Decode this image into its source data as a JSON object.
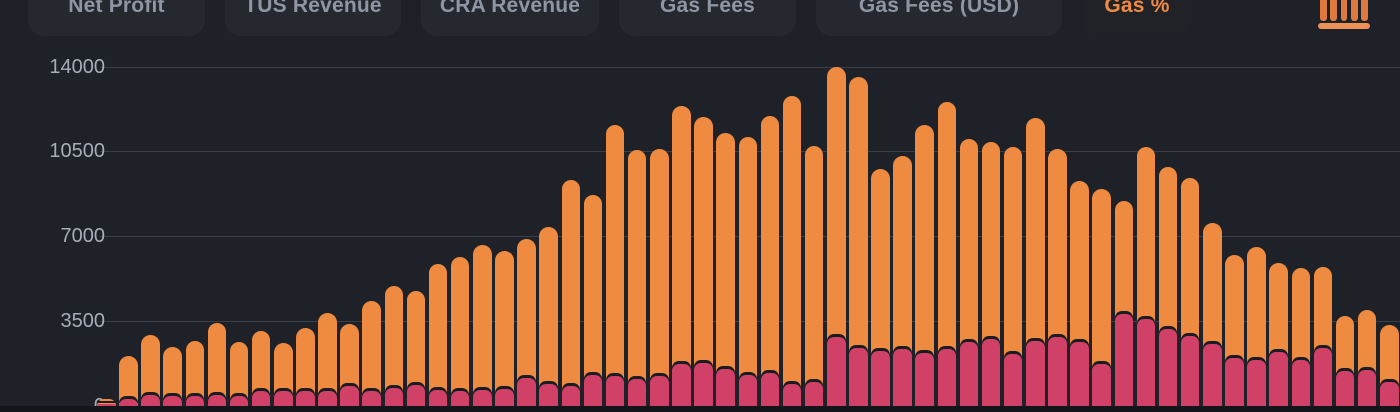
{
  "tabs": [
    {
      "label": "Net Profit",
      "active": false,
      "min_width": 177
    },
    {
      "label": "TUS Revenue",
      "active": false,
      "min_width": 176
    },
    {
      "label": "CRA Revenue",
      "active": false,
      "min_width": 178
    },
    {
      "label": "Gas Fees",
      "active": false,
      "min_width": 177
    },
    {
      "label": "Gas Fees (USD)",
      "active": false,
      "min_width": 246
    },
    {
      "label": "Gas %",
      "active": true,
      "min_width": 110
    }
  ],
  "toolbar": {
    "chart_type_icon": "bar-chart-icon"
  },
  "colors": {
    "background": "#1e2127",
    "tab_bg": "#26282f",
    "tab_text": "#8f96a3",
    "active_tab_text": "#ef8a44",
    "orange_bar": "#ee8b40",
    "magenta_bar": "#d04067",
    "gridline": "#3a3e47",
    "tick_text": "#a7adb9"
  },
  "chart_data": {
    "type": "bar",
    "title": "",
    "xlabel": "",
    "ylabel": "",
    "x_tick_labels_visible": false,
    "grid": true,
    "legend": "none",
    "ylim": [
      0,
      14000
    ],
    "y_ticks": [
      0,
      3500,
      7000,
      10500,
      14000
    ],
    "series": [
      {
        "name": "orange",
        "color": "#ee8b40",
        "values": [
          300,
          2050,
          2950,
          2420,
          2670,
          3420,
          2630,
          3080,
          2590,
          3210,
          3830,
          3370,
          4330,
          4950,
          4740,
          5860,
          6150,
          6640,
          6400,
          6900,
          7390,
          9340,
          8710,
          11610,
          10540,
          10580,
          12360,
          11900,
          11240,
          11080,
          11950,
          12770,
          10740,
          13970,
          13560,
          9790,
          10330,
          11570,
          12520,
          11030,
          10870,
          10700,
          11860,
          10620,
          9290,
          8950,
          8460,
          10700,
          9870,
          9420,
          7560,
          6230,
          6560,
          5900,
          5690,
          5730,
          3700,
          3950,
          3330
        ]
      },
      {
        "name": "magenta",
        "color": "#d04067",
        "values": [
          80,
          310,
          475,
          395,
          435,
          475,
          435,
          640,
          600,
          640,
          600,
          810,
          640,
          725,
          850,
          680,
          600,
          680,
          720,
          1140,
          890,
          810,
          1300,
          1220,
          1100,
          1220,
          1720,
          1760,
          1510,
          1300,
          1345,
          890,
          1010,
          2840,
          2380,
          2260,
          2340,
          2170,
          2340,
          2630,
          2760,
          2130,
          2670,
          2840,
          2630,
          1720,
          3800,
          3600,
          3170,
          2900,
          2550,
          2000,
          1880,
          2220,
          1880,
          2380,
          1450,
          1500,
          1000
        ]
      }
    ]
  }
}
